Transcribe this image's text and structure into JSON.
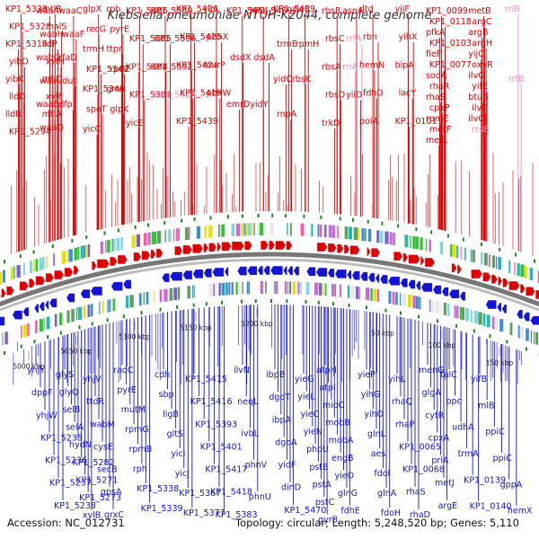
{
  "title": "Klebsiella pneumoniae NTUH-K2044, complete genome",
  "footer": {
    "accession_label": "Accession:",
    "accession": "NC_012731",
    "topology_label": "Topology:",
    "topology": "circular",
    "length_label": "Length:",
    "length": "5,248,520 bp",
    "genes_label": "Genes:",
    "genes": "5,110"
  },
  "colors": {
    "forward_genes": "#e00000",
    "reverse_genes": "#1414d8",
    "rna_genes": "#f28cc8",
    "backbone": "#777777"
  },
  "ticks": [
    "5000 kbp",
    "5050 kbp",
    "5100 kbp",
    "5150 kbp",
    "5200 kbp",
    "50 kbp",
    "100 kbp",
    "150 kbp"
  ],
  "top_labels": [
    {
      "t": "KP1_5333",
      "rna": false
    },
    {
      "t": "KP1_5323",
      "rna": false
    },
    {
      "t": "KP1_5316",
      "rna": false
    },
    {
      "t": "yibO",
      "rna": false
    },
    {
      "t": "yibK",
      "rna": false
    },
    {
      "t": "lldD",
      "rna": false
    },
    {
      "t": "lldR",
      "rna": false
    },
    {
      "t": "KP1_5294",
      "rna": false
    },
    {
      "t": "mtlR",
      "rna": false
    },
    {
      "t": "malS",
      "rna": false
    },
    {
      "t": "lldP",
      "rna": false
    },
    {
      "t": "xylH",
      "rna": false
    },
    {
      "t": "mtlD",
      "rna": false
    },
    {
      "t": "xylF",
      "rna": false
    },
    {
      "t": "mtlA",
      "rna": false
    },
    {
      "t": "waaA",
      "rna": false
    },
    {
      "t": "wabH",
      "rna": false
    },
    {
      "t": "wabG",
      "rna": false
    },
    {
      "t": "waaL",
      "rna": false
    },
    {
      "t": "waaE",
      "rna": false
    },
    {
      "t": "waaQ",
      "rna": false
    },
    {
      "t": "waaC",
      "rna": false
    },
    {
      "t": "waaF",
      "rna": false
    },
    {
      "t": "rfaD",
      "rna": false
    },
    {
      "t": "dut",
      "rna": false
    },
    {
      "t": "dfp",
      "rna": false
    },
    {
      "t": "glpX",
      "rna": false
    },
    {
      "t": "recG",
      "rna": false
    },
    {
      "t": "trmH",
      "rna": false
    },
    {
      "t": "KP1_5349",
      "rna": false
    },
    {
      "t": "KP1_5346",
      "rna": false
    },
    {
      "t": "spoT",
      "rna": false
    },
    {
      "t": "yicC",
      "rna": false
    },
    {
      "t": "rph",
      "rna": false
    },
    {
      "t": "pyrE",
      "rna": false
    },
    {
      "t": "ttpr",
      "rna": false
    },
    {
      "t": "rpoZ",
      "rna": false
    },
    {
      "t": "gmk",
      "rna": false
    },
    {
      "t": "glpK",
      "rna": false
    },
    {
      "t": "KP1_5386",
      "rna": false
    },
    {
      "t": "KP1_5385",
      "rna": false
    },
    {
      "t": "KP1_5384",
      "rna": false
    },
    {
      "t": "KP1_5381",
      "rna": false
    },
    {
      "t": "yicE",
      "rna": false
    },
    {
      "t": "KP1_5380",
      "rna": false
    },
    {
      "t": "KP1_5396",
      "rna": false
    },
    {
      "t": "KP1_5392",
      "rna": false
    },
    {
      "t": "KP1_5424",
      "rna": true
    },
    {
      "t": "KP1_5426",
      "rna": false
    },
    {
      "t": "KP1_5425",
      "rna": false
    },
    {
      "t": "KP1_5424",
      "rna": false
    },
    {
      "t": "KP1_5419",
      "rna": false
    },
    {
      "t": "KP1_5439",
      "rna": false
    },
    {
      "t": "yicL",
      "rna": false
    },
    {
      "t": "phnX",
      "rna": false
    },
    {
      "t": "murP",
      "rna": false
    },
    {
      "t": "phnW",
      "rna": false
    },
    {
      "t": "KP1_5464",
      "rna": false
    },
    {
      "t": "dsdX",
      "rna": false
    },
    {
      "t": "emrD",
      "rna": false
    },
    {
      "t": "KP1_5469",
      "rna": false
    },
    {
      "t": "dsdA",
      "rna": false
    },
    {
      "t": "yidY",
      "rna": false
    },
    {
      "t": "KP1_5489",
      "rna": false
    },
    {
      "t": "trmE",
      "rna": false
    },
    {
      "t": "yidC",
      "rna": false
    },
    {
      "t": "rnpA",
      "rna": false
    },
    {
      "t": "yieF",
      "rna": false
    },
    {
      "t": "rpmH",
      "rna": false
    },
    {
      "t": "rbsK",
      "rna": false
    },
    {
      "t": "rbsB",
      "rna": false
    },
    {
      "t": "rbsC",
      "rna": false
    },
    {
      "t": "rbsA",
      "rna": false
    },
    {
      "t": "rbsD",
      "rna": false
    },
    {
      "t": "trkD",
      "rna": false
    },
    {
      "t": "asnA",
      "rna": false
    },
    {
      "t": "rrfA",
      "rna": true
    },
    {
      "t": "rrlA",
      "rna": true
    },
    {
      "t": "yiiD",
      "rna": false
    },
    {
      "t": "dtd",
      "rna": false
    },
    {
      "t": "rbn",
      "rna": false
    },
    {
      "t": "hemN",
      "rna": false
    },
    {
      "t": "fdhD",
      "rna": false
    },
    {
      "t": "polA",
      "rna": false
    },
    {
      "t": "yiiF",
      "rna": false
    },
    {
      "t": "yihX",
      "rna": false
    },
    {
      "t": "bipA",
      "rna": false
    },
    {
      "t": "lacY",
      "rna": false
    },
    {
      "t": "KP1_0101",
      "rna": false
    },
    {
      "t": "KP1_0099",
      "rna": false
    },
    {
      "t": "KP1_0118",
      "rna": false
    },
    {
      "t": "pfkA",
      "rna": false
    },
    {
      "t": "KP1_0103",
      "rna": false
    },
    {
      "t": "fieF",
      "rna": false
    },
    {
      "t": "KP1_0077",
      "rna": false
    },
    {
      "t": "sodA",
      "rna": false
    },
    {
      "t": "rhaR",
      "rna": false
    },
    {
      "t": "rhaS",
      "rna": false
    },
    {
      "t": "cpxP",
      "rna": false
    },
    {
      "t": "rpmE",
      "rna": false
    },
    {
      "t": "metF",
      "rna": false
    },
    {
      "t": "metL",
      "rna": false
    },
    {
      "t": "metB",
      "rna": false
    },
    {
      "t": "argC",
      "rna": false
    },
    {
      "t": "argB",
      "rna": false
    },
    {
      "t": "argH",
      "rna": false
    },
    {
      "t": "yijC",
      "rna": false
    },
    {
      "t": "oxyR",
      "rna": false
    },
    {
      "t": "ilvG",
      "rna": false
    },
    {
      "t": "yifE",
      "rna": false
    },
    {
      "t": "btuB",
      "rna": false
    },
    {
      "t": "ilvE",
      "rna": false
    },
    {
      "t": "ilvC",
      "rna": false
    },
    {
      "t": "rrsB",
      "rna": true
    },
    {
      "t": "rrlB",
      "rna": true
    },
    {
      "t": "rrfB",
      "rna": true
    }
  ],
  "bottom_labels": [
    "yhjY",
    "dppF",
    "yhjW",
    "KP1_5235",
    "KP1_5236",
    "KP1_5237",
    "KP1_5238",
    "glyS",
    "glyQ",
    "selB",
    "selA",
    "hydN",
    "KP1_5282",
    "KP1_5271",
    "KP1_5273",
    "xylB",
    "yhjV",
    "ttdR",
    "wabM",
    "cysE",
    "secB",
    "gpsA",
    "grxC",
    "radC",
    "pyrE",
    "mutM",
    "rpmG",
    "rpmB",
    "rph",
    "KP1_5338",
    "KP1_5339",
    "cdh",
    "sbp",
    "ligB",
    "gltS",
    "yicI",
    "yicJ",
    "KP1_5367",
    "KP1_5377",
    "KP1_5415",
    "KP1_5416",
    "KP1_5393",
    "KP1_5401",
    "KP1_5417",
    "KP1_5418",
    "KP1_5383",
    "ilvN",
    "neqL",
    "ivbL",
    "phnV",
    "phnU",
    "ibpB",
    "dgoT",
    "ibpA",
    "dgoA",
    "yidF",
    "dinD",
    "KP1_5470",
    "yieG",
    "yieL",
    "yieC",
    "yieN",
    "phoU",
    "pstB",
    "pstA",
    "pstC",
    "gyrB",
    "atpH",
    "atpI",
    "mioC",
    "mobB",
    "mobA",
    "engB",
    "yieO",
    "glnG",
    "fdhE",
    "yieP",
    "yihG",
    "yihO",
    "glnL",
    "aes",
    "fdoI",
    "glnA",
    "fdoH",
    "yihL",
    "rhaQ",
    "rhaP",
    "KP1_0065",
    "KP1_0068",
    "rhaS",
    "rhaD",
    "menG",
    "glgA",
    "cytR",
    "cpxA",
    "priA",
    "metJ",
    "argE",
    "talC",
    "ppc",
    "udhA",
    "trmA",
    "KP1_0139",
    "KP1_0140",
    "yifB",
    "mlB",
    "ppiC",
    "ppiC",
    "gppA",
    "hemX"
  ]
}
